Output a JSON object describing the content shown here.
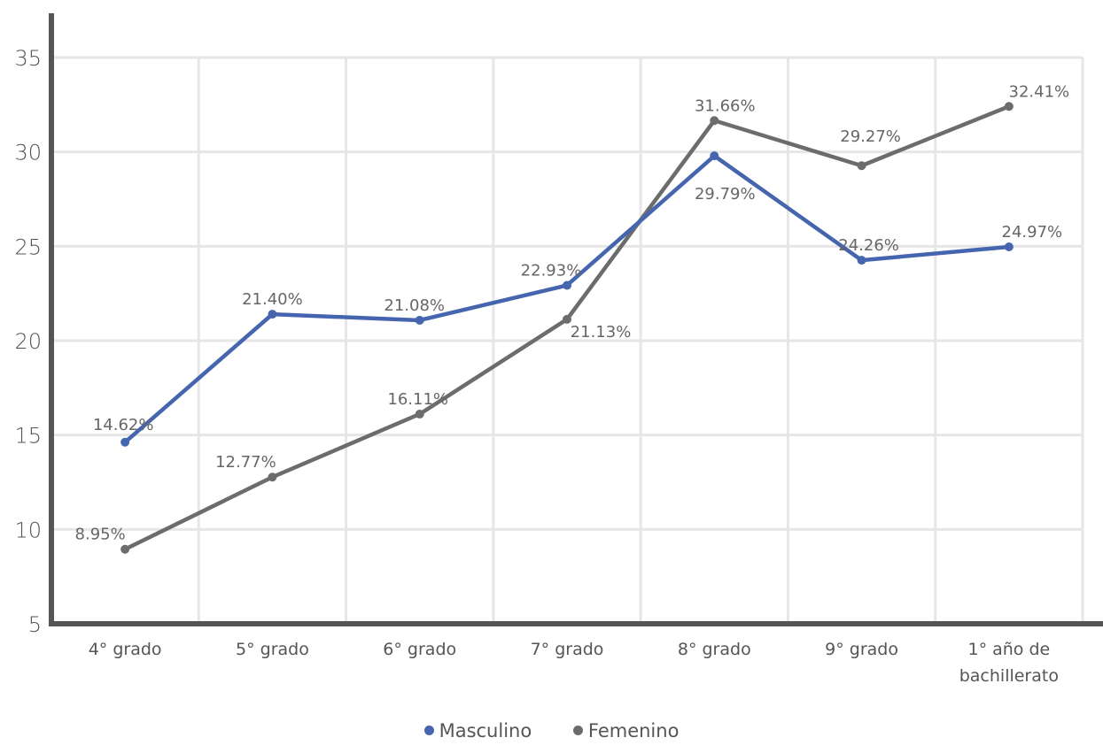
{
  "chart_data": {
    "type": "line",
    "categories": [
      "4° grado",
      "5° grado",
      "6° grado",
      "7° grado",
      "8° grado",
      "9° grado",
      "1° año de bachillerato"
    ],
    "series": [
      {
        "name": "Masculino",
        "color": "#4566AE",
        "values": [
          14.62,
          21.4,
          21.08,
          22.93,
          29.79,
          24.26,
          24.97
        ],
        "labels": [
          "14.62%",
          "21.40%",
          "21.08%",
          "22.93%",
          "29.79%",
          "24.26%",
          "24.97%"
        ]
      },
      {
        "name": "Femenino",
        "color": "#6C6C6C",
        "values": [
          8.95,
          12.77,
          16.11,
          21.13,
          31.66,
          29.27,
          32.41
        ],
        "labels": [
          "8.95%",
          "12.77%",
          "16.11%",
          "21.13%",
          "31.66%",
          "29.27%",
          "32.41%"
        ]
      }
    ],
    "yticks": [
      "5",
      "10",
      "15",
      "20",
      "25",
      "30",
      "35"
    ],
    "ylim": [
      5,
      35
    ],
    "grid": true,
    "legend_position": "bottom",
    "title": "",
    "xlabel": "",
    "ylabel": ""
  }
}
